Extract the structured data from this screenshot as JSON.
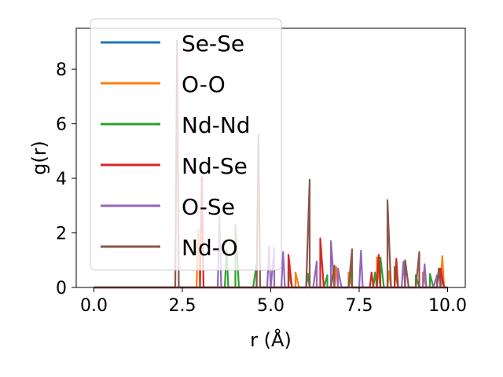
{
  "chart_data": {
    "type": "line",
    "xlabel": "r (Å)",
    "ylabel": "g(r)",
    "xlim": [
      -0.5,
      10.5
    ],
    "ylim": [
      0,
      9.5
    ],
    "x_ticks": [
      0.0,
      2.5,
      5.0,
      7.5,
      10.0
    ],
    "x_tick_labels": [
      "0.0",
      "2.5",
      "5.0",
      "7.5",
      "10.0"
    ],
    "y_ticks": [
      0,
      2,
      4,
      6,
      8
    ],
    "y_tick_labels": [
      "0",
      "2",
      "4",
      "6",
      "8"
    ],
    "grid": false,
    "legend_position": "top-left",
    "series": [
      {
        "name": "Se-Se",
        "color": "#1f77b4",
        "peaks": [
          [
            9.8,
            0.4
          ]
        ]
      },
      {
        "name": "O-O",
        "color": "#ff7f0e",
        "peaks": [
          [
            2.95,
            2.1
          ],
          [
            5.7,
            0.55
          ],
          [
            6.85,
            0.75
          ],
          [
            7.2,
            0.55
          ],
          [
            8.0,
            1.1
          ],
          [
            8.35,
            0.6
          ],
          [
            9.3,
            0.55
          ],
          [
            9.85,
            1.15
          ]
        ]
      },
      {
        "name": "Nd-Nd",
        "color": "#2ca02c",
        "peaks": [
          [
            3.75,
            1.35
          ],
          [
            4.0,
            2.3
          ],
          [
            4.6,
            0.85
          ],
          [
            5.5,
            0.6
          ],
          [
            6.05,
            0.5
          ],
          [
            6.6,
            0.45
          ],
          [
            7.3,
            0.7
          ],
          [
            7.95,
            0.55
          ],
          [
            8.1,
            1.1
          ],
          [
            8.5,
            0.75
          ],
          [
            9.1,
            0.45
          ],
          [
            9.5,
            0.5
          ]
        ]
      },
      {
        "name": "Nd-Se",
        "color": "#d62728",
        "peaks": [
          [
            3.05,
            4.05
          ],
          [
            5.5,
            1.2
          ],
          [
            6.4,
            1.8
          ],
          [
            7.85,
            0.55
          ],
          [
            8.05,
            1.2
          ],
          [
            8.55,
            1.05
          ],
          [
            9.8,
            0.7
          ]
        ]
      },
      {
        "name": "O-Se",
        "color": "#9467bd",
        "peaks": [
          [
            3.55,
            2.6
          ],
          [
            4.95,
            1.5
          ],
          [
            5.1,
            1.45
          ],
          [
            5.35,
            1.3
          ],
          [
            6.3,
            0.95
          ],
          [
            6.7,
            1.7
          ],
          [
            6.9,
            0.7
          ],
          [
            7.55,
            1.35
          ],
          [
            8.75,
            0.95
          ],
          [
            9.35,
            0.85
          ],
          [
            9.7,
            0.45
          ]
        ]
      },
      {
        "name": "Nd-O",
        "color": "#8c564b",
        "peaks": [
          [
            2.35,
            9.05
          ],
          [
            4.65,
            5.6
          ],
          [
            6.1,
            3.95
          ],
          [
            6.8,
            0.8
          ],
          [
            7.3,
            1.4
          ],
          [
            8.3,
            3.2
          ],
          [
            8.8,
            1.0
          ],
          [
            9.2,
            1.3
          ],
          [
            9.75,
            0.7
          ]
        ]
      }
    ]
  }
}
